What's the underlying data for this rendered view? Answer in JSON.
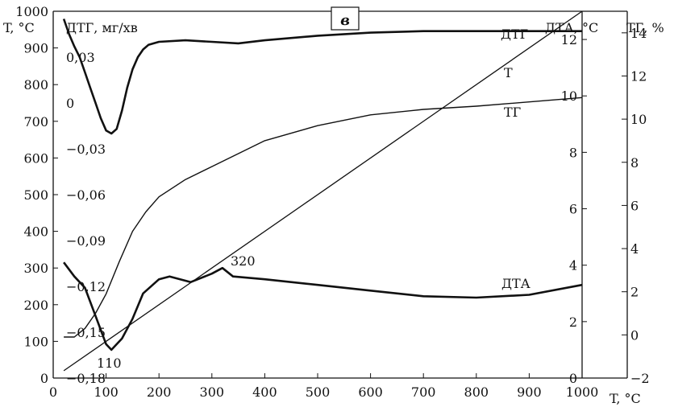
{
  "chart_data": {
    "type": "line",
    "panel_label": "в",
    "x_axis": {
      "label": "T, °C",
      "range": [
        0,
        1000
      ],
      "ticks": [
        0,
        100,
        200,
        300,
        400,
        500,
        600,
        700,
        800,
        900,
        1000
      ]
    },
    "y_axes": {
      "temperature": {
        "label": "T, °C",
        "range": [
          0,
          1000
        ],
        "ticks": [
          0,
          100,
          200,
          300,
          400,
          500,
          600,
          700,
          800,
          900,
          1000
        ]
      },
      "dtg": {
        "label": "ДТГ, мг/хв",
        "range": [
          -0.18,
          0.06
        ],
        "ticks": [
          "0,03",
          "0",
          "−0,03",
          "−0,06",
          "−0,09",
          "−0,12",
          "−0,15",
          "−0,18"
        ],
        "tick_values": [
          0.03,
          0,
          -0.03,
          -0.06,
          -0.09,
          -0.12,
          -0.15,
          -0.18
        ]
      },
      "dta": {
        "label": "ДТА, °C",
        "range": [
          0,
          13
        ],
        "ticks": [
          0,
          2,
          4,
          6,
          8,
          10,
          12
        ]
      },
      "tg": {
        "label": "ТГ, %",
        "range": [
          -2,
          15
        ],
        "ticks": [
          -2,
          0,
          2,
          4,
          6,
          8,
          10,
          12,
          14
        ]
      }
    },
    "series": [
      {
        "name": "ДТГ",
        "axis": "dtg",
        "x": [
          20,
          30,
          40,
          50,
          60,
          70,
          80,
          90,
          100,
          110,
          120,
          130,
          140,
          150,
          160,
          170,
          180,
          190,
          200,
          250,
          300,
          350,
          400,
          500,
          600,
          700,
          800,
          900,
          1000
        ],
        "y": [
          0.055,
          0.045,
          0.037,
          0.03,
          0.02,
          0.01,
          0.0,
          -0.01,
          -0.018,
          -0.02,
          -0.017,
          -0.005,
          0.01,
          0.022,
          0.03,
          0.035,
          0.038,
          0.039,
          0.04,
          0.041,
          0.04,
          0.039,
          0.041,
          0.044,
          0.046,
          0.047,
          0.047,
          0.047,
          0.047
        ]
      },
      {
        "name": "T",
        "axis": "temperature",
        "x": [
          20,
          1000
        ],
        "y": [
          20,
          1000
        ]
      },
      {
        "name": "ТГ",
        "axis": "tg",
        "x": [
          20,
          40,
          60,
          80,
          100,
          125,
          150,
          175,
          200,
          250,
          300,
          350,
          400,
          500,
          600,
          700,
          800,
          900,
          1000
        ],
        "y": [
          -0.1,
          -0.1,
          0.3,
          1.0,
          1.9,
          3.4,
          4.8,
          5.7,
          6.4,
          7.2,
          7.8,
          8.4,
          9.0,
          9.7,
          10.2,
          10.45,
          10.6,
          10.8,
          11.0
        ]
      },
      {
        "name": "ДТА",
        "axis": "dta",
        "x": [
          20,
          40,
          60,
          80,
          100,
          110,
          130,
          150,
          170,
          200,
          220,
          260,
          300,
          320,
          340,
          400,
          500,
          600,
          700,
          800,
          900,
          1000
        ],
        "y": [
          4.1,
          3.6,
          3.2,
          2.2,
          1.2,
          1.0,
          1.4,
          2.1,
          3.0,
          3.5,
          3.6,
          3.4,
          3.7,
          3.9,
          3.6,
          3.5,
          3.3,
          3.1,
          2.9,
          2.85,
          2.95,
          3.3
        ]
      }
    ],
    "annotations": [
      {
        "text": "320",
        "x": 320
      },
      {
        "text": "110",
        "x": 110
      }
    ]
  }
}
